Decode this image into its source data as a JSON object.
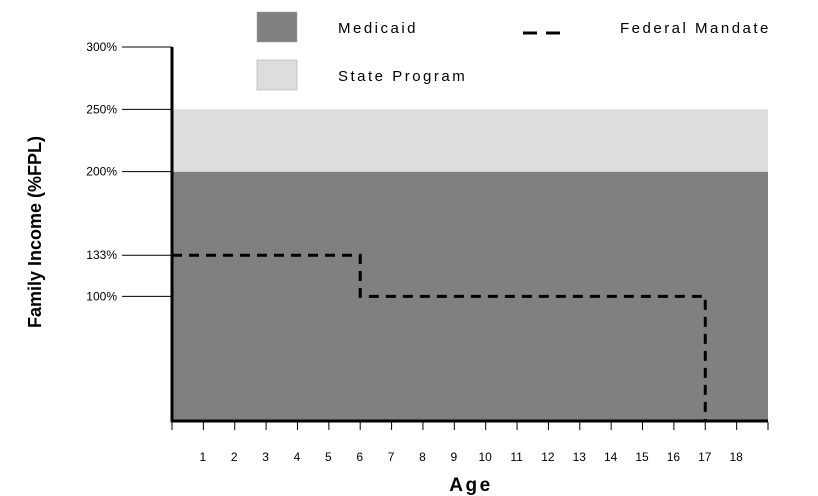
{
  "chart_data": {
    "type": "area",
    "title": "",
    "xlabel": "Age",
    "ylabel": "Family Income (%FPL)",
    "xlim": [
      0,
      19
    ],
    "ylim": [
      0,
      300
    ],
    "x_ticks": [
      1,
      2,
      3,
      4,
      5,
      6,
      7,
      8,
      9,
      10,
      11,
      12,
      13,
      14,
      15,
      16,
      17,
      18
    ],
    "y_ticks": [
      {
        "value": 300,
        "label": "300%"
      },
      {
        "value": 250,
        "label": "250%"
      },
      {
        "value": 200,
        "label": "200%"
      },
      {
        "value": 133,
        "label": "133%"
      },
      {
        "value": 100,
        "label": "100%"
      }
    ],
    "legend_position": "top",
    "series": [
      {
        "name": "Medicaid",
        "kind": "band",
        "color": "#808080",
        "x_range": [
          0,
          19
        ],
        "y_range": [
          0,
          200
        ]
      },
      {
        "name": "State Program",
        "kind": "band",
        "color": "#dddddd",
        "x_range": [
          0,
          19
        ],
        "y_range": [
          200,
          250
        ]
      },
      {
        "name": "Federal Mandate",
        "kind": "dashed-line",
        "color": "#000000",
        "points": [
          [
            0,
            133
          ],
          [
            6,
            133
          ],
          [
            6,
            100
          ],
          [
            17,
            100
          ],
          [
            17,
            0
          ]
        ]
      }
    ]
  }
}
